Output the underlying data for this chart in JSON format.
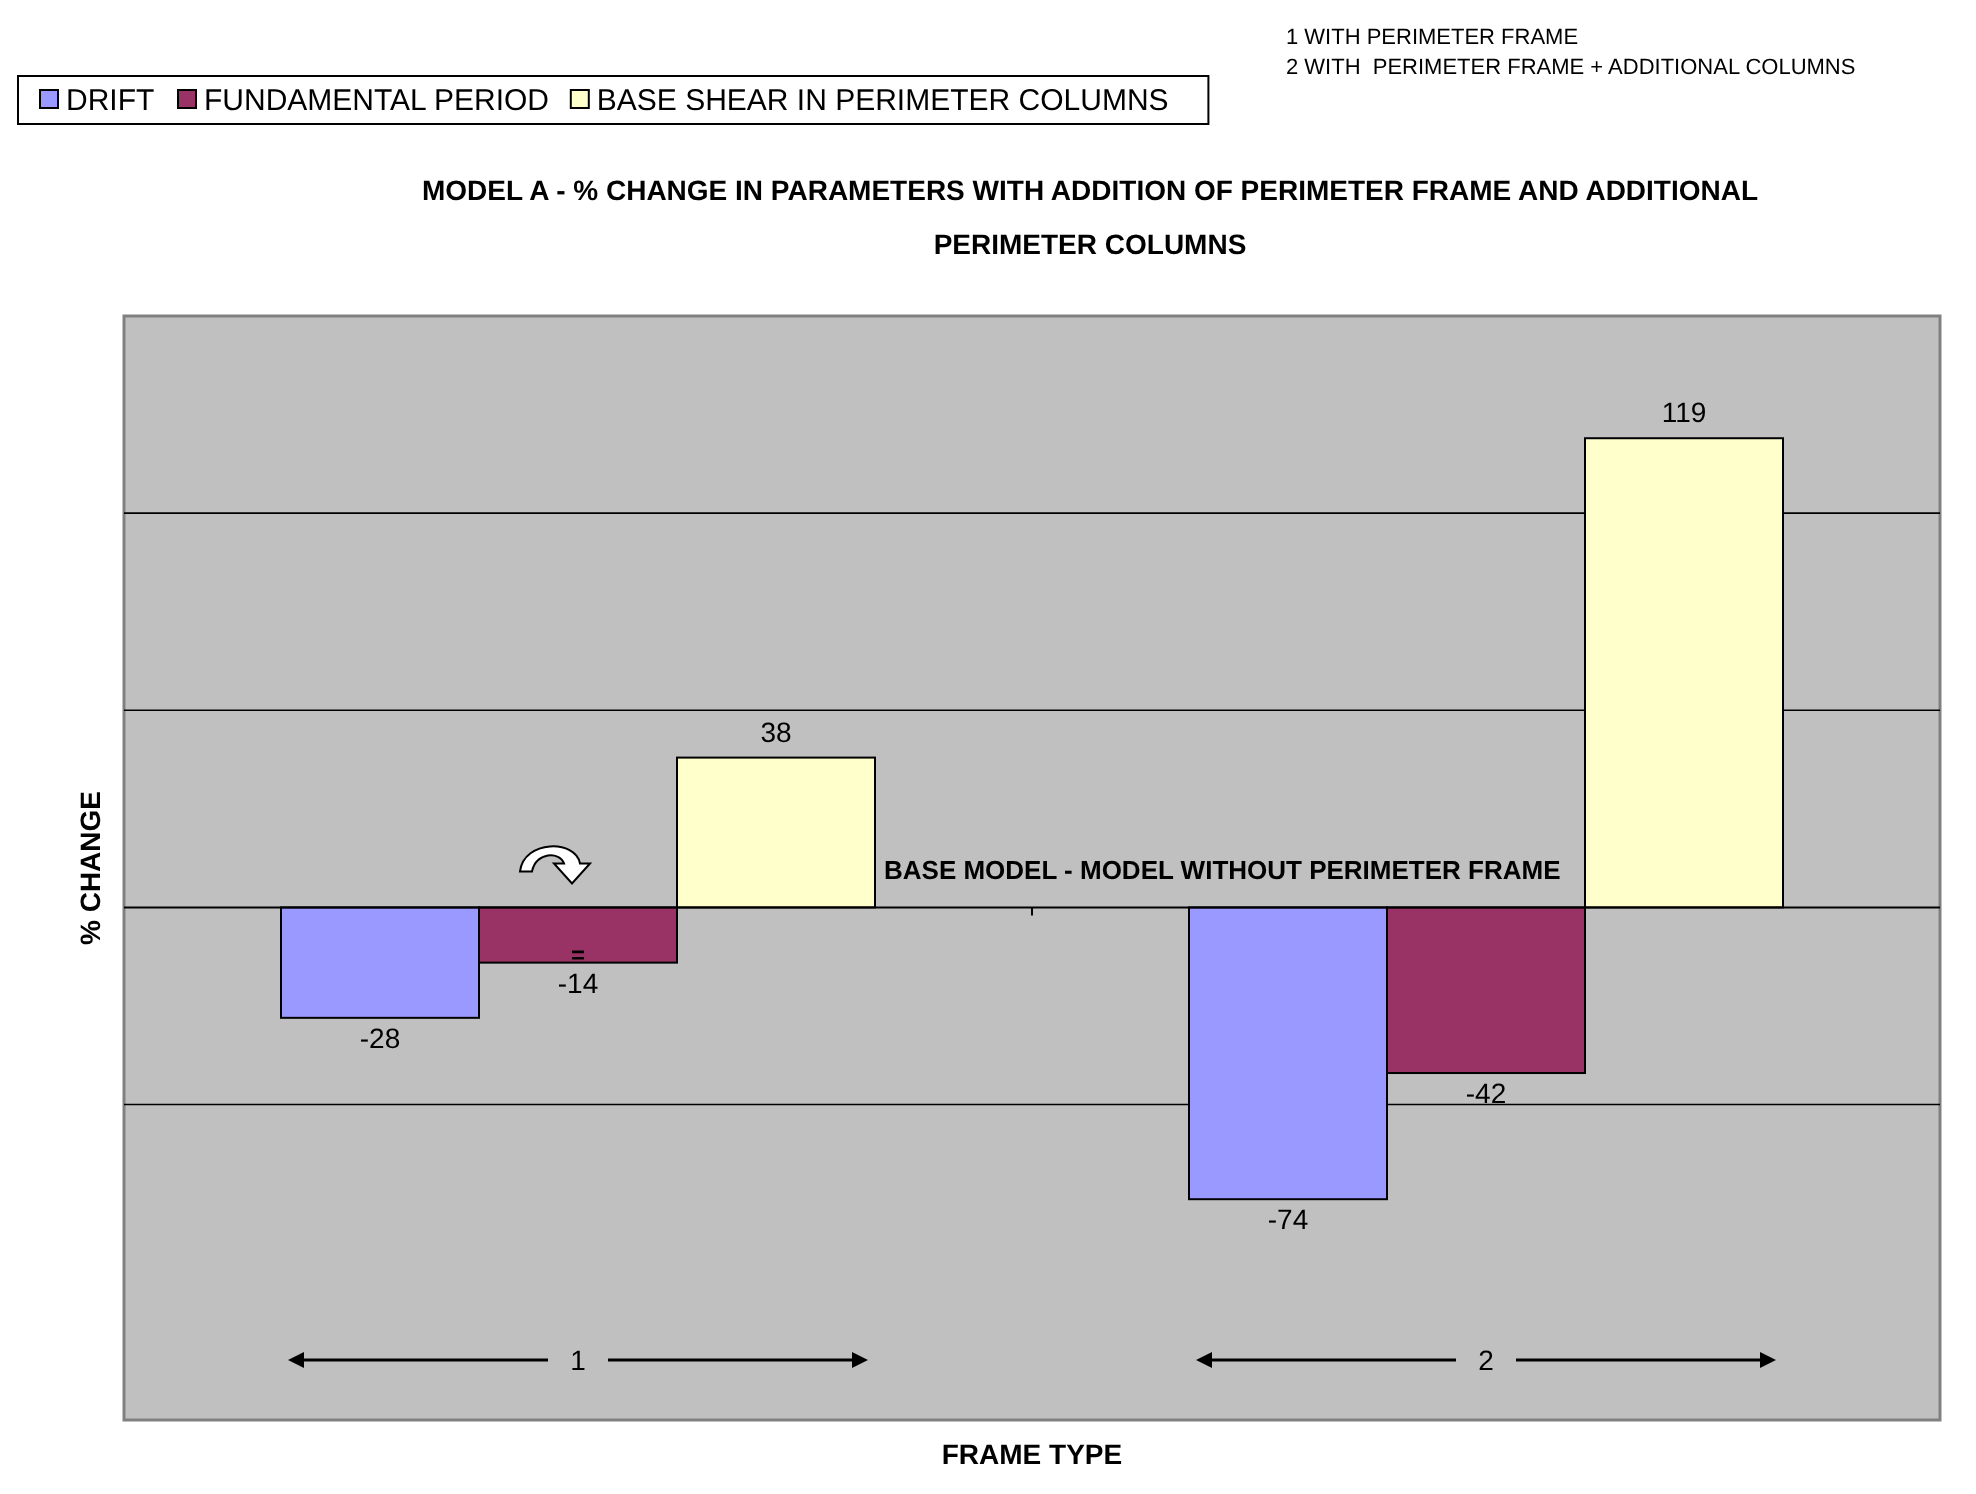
{
  "chart_data": {
    "type": "bar",
    "title": "MODEL A - % CHANGE IN PARAMETERS WITH ADDITION OF PERIMETER FRAME AND ADDITIONAL PERIMETER COLUMNS",
    "xlabel": "FRAME TYPE",
    "ylabel": "% CHANGE",
    "categories": [
      "1",
      "2"
    ],
    "series": [
      {
        "name": "DRIFT",
        "color": "#9999ff",
        "values": [
          -28,
          -74
        ]
      },
      {
        "name": "FUNDAMENTAL PERIOD",
        "color": "#993366",
        "values": [
          -14,
          -42
        ]
      },
      {
        "name": "BASE SHEAR IN PERIMETER COLUMNS",
        "color": "#ffffcc",
        "values": [
          38,
          119
        ]
      }
    ],
    "ylim": [
      -130,
      150
    ],
    "yticks": [
      {
        "value": -50,
        "label": null
      },
      {
        "value": 0,
        "label": null
      },
      {
        "value": 50,
        "label": null
      },
      {
        "value": 100,
        "label": null
      }
    ],
    "grid": "y",
    "tick_labels": "x",
    "data_labels": true,
    "legend": "top left",
    "annotations": [
      "1 WITH PERIMETER FRAME",
      "2 WITH  PERIMETER FRAME + ADDITIONAL COLUMNS",
      "BASE MODEL - MODEL WITHOUT PERIMETER FRAME",
      "="
    ]
  }
}
